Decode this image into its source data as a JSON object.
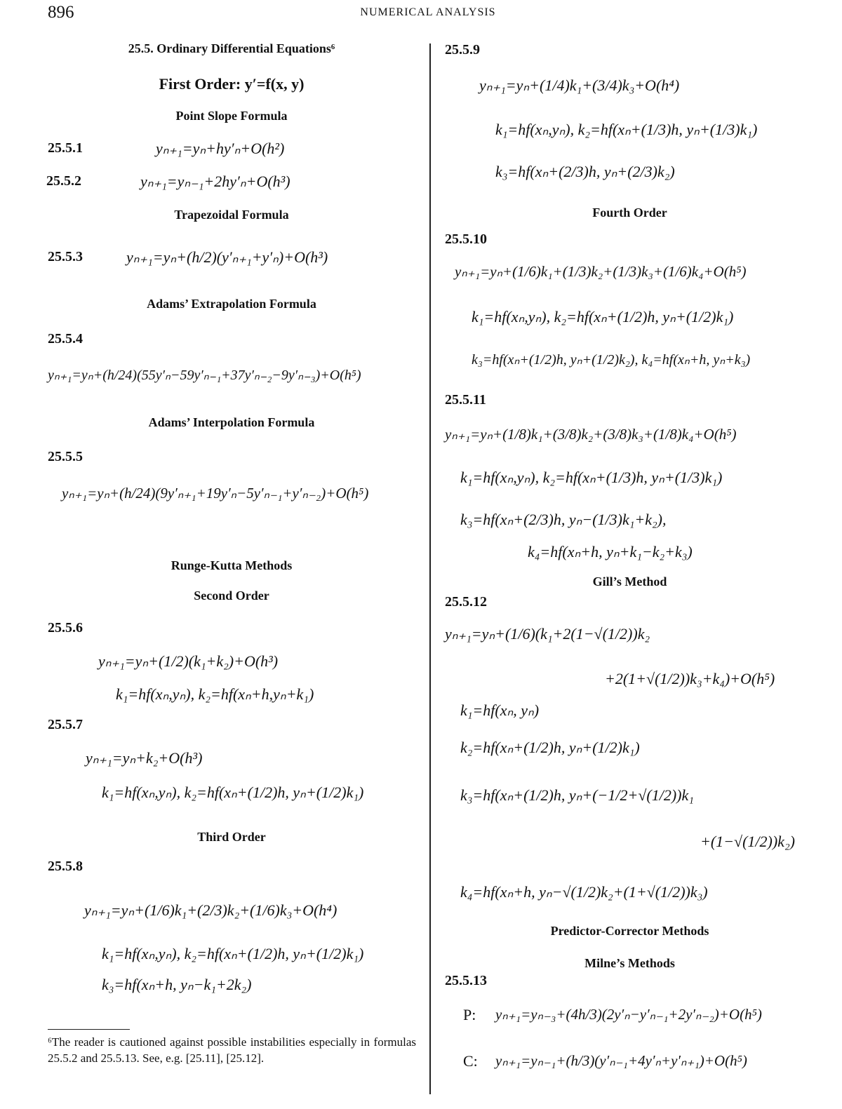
{
  "header": {
    "page_number": "896",
    "running_head": "NUMERICAL ANALYSIS"
  },
  "left": {
    "section_title": "25.5. Ordinary Differential Equations⁶",
    "first_order": "First Order: y′=f(x, y)",
    "point_slope": "Point Slope Formula",
    "eq_25_5_1": {
      "label": "25.5.1",
      "formula": "yₙ₊₁=yₙ+hy′ₙ+O(h²)"
    },
    "eq_25_5_2": {
      "label": "25.5.2",
      "formula": "yₙ₊₁=yₙ₋₁+2hy′ₙ+O(h³)"
    },
    "trapezoidal": "Trapezoidal Formula",
    "eq_25_5_3": {
      "label": "25.5.3",
      "formula": "yₙ₊₁=yₙ+(h/2)(y′ₙ₊₁+y′ₙ)+O(h³)"
    },
    "adams_extrap": "Adams’ Extrapolation Formula",
    "eq_25_5_4": {
      "label": "25.5.4",
      "formula": "yₙ₊₁=yₙ+(h/24)(55y′ₙ−59y′ₙ₋₁+37y′ₙ₋₂−9y′ₙ₋₃)+O(h⁵)"
    },
    "adams_interp": "Adams’ Interpolation Formula",
    "eq_25_5_5": {
      "label": "25.5.5",
      "formula": "yₙ₊₁=yₙ+(h/24)(9y′ₙ₊₁+19y′ₙ−5y′ₙ₋₁+y′ₙ₋₂)+O(h⁵)"
    },
    "runge_kutta": "Runge-Kutta Methods",
    "second_order": "Second Order",
    "eq_25_5_6": {
      "label": "25.5.6",
      "line1": "yₙ₊₁=yₙ+(1/2)(k₁+k₂)+O(h³)",
      "line2": "k₁=hf(xₙ,yₙ), k₂=hf(xₙ+h,yₙ+k₁)"
    },
    "eq_25_5_7": {
      "label": "25.5.7",
      "line1": "yₙ₊₁=yₙ+k₂+O(h³)",
      "line2": "k₁=hf(xₙ,yₙ), k₂=hf(xₙ+(1/2)h, yₙ+(1/2)k₁)"
    },
    "third_order": "Third Order",
    "eq_25_5_8": {
      "label": "25.5.8",
      "line1": "yₙ₊₁=yₙ+(1/6)k₁+(2/3)k₂+(1/6)k₃+O(h⁴)",
      "line2": "k₁=hf(xₙ,yₙ), k₂=hf(xₙ+(1/2)h, yₙ+(1/2)k₁)",
      "line3": "k₃=hf(xₙ+h, yₙ−k₁+2k₂)"
    },
    "footnote": "⁶The reader is cautioned against possible instabilities especially in formulas 25.5.2 and 25.5.13. See, e.g. [25.11], [25.12]."
  },
  "right": {
    "eq_25_5_9": {
      "label": "25.5.9",
      "line1": "yₙ₊₁=yₙ+(1/4)k₁+(3/4)k₃+O(h⁴)",
      "line2": "k₁=hf(xₙ,yₙ), k₂=hf(xₙ+(1/3)h, yₙ+(1/3)k₁)",
      "line3": "k₃=hf(xₙ+(2/3)h, yₙ+(2/3)k₂)"
    },
    "fourth_order": "Fourth Order",
    "eq_25_5_10": {
      "label": "25.5.10",
      "line1": "yₙ₊₁=yₙ+(1/6)k₁+(1/3)k₂+(1/3)k₃+(1/6)k₄+O(h⁵)",
      "line2": "k₁=hf(xₙ,yₙ), k₂=hf(xₙ+(1/2)h, yₙ+(1/2)k₁)",
      "line3": "k₃=hf(xₙ+(1/2)h, yₙ+(1/2)k₂), k₄=hf(xₙ+h, yₙ+k₃)"
    },
    "eq_25_5_11": {
      "label": "25.5.11",
      "line1": "yₙ₊₁=yₙ+(1/8)k₁+(3/8)k₂+(3/8)k₃+(1/8)k₄+O(h⁵)",
      "line2": "k₁=hf(xₙ,yₙ), k₂=hf(xₙ+(1/3)h, yₙ+(1/3)k₁)",
      "line3": "k₃=hf(xₙ+(2/3)h, yₙ−(1/3)k₁+k₂),",
      "line4": "k₄=hf(xₙ+h, yₙ+k₁−k₂+k₃)"
    },
    "gills_method": "Gill’s Method",
    "eq_25_5_12": {
      "label": "25.5.12",
      "line1": "yₙ₊₁=yₙ+(1/6)(k₁+2(1−√(1/2))k₂",
      "line2": "+2(1+√(1/2))k₃+k₄)+O(h⁵)",
      "line3": "k₁=hf(xₙ, yₙ)",
      "line4": "k₂=hf(xₙ+(1/2)h, yₙ+(1/2)k₁)",
      "line5": "k₃=hf(xₙ+(1/2)h, yₙ+(−1/2+√(1/2))k₁",
      "line6": "+(1−√(1/2))k₂)",
      "line7": "k₄=hf(xₙ+h, yₙ−√(1/2)k₂+(1+√(1/2))k₃)"
    },
    "predictor_corrector": "Predictor-Corrector Methods",
    "milnes_methods": "Milne’s Methods",
    "eq_25_5_13": {
      "label": "25.5.13",
      "p_label": "P:",
      "p_formula": "yₙ₊₁=yₙ₋₃+(4h/3)(2y′ₙ−y′ₙ₋₁+2y′ₙ₋₂)+O(h⁵)",
      "c_label": "C:",
      "c_formula": "yₙ₊₁=yₙ₋₁+(h/3)(y′ₙ₋₁+4y′ₙ+y′ₙ₊₁)+O(h⁵)"
    }
  }
}
